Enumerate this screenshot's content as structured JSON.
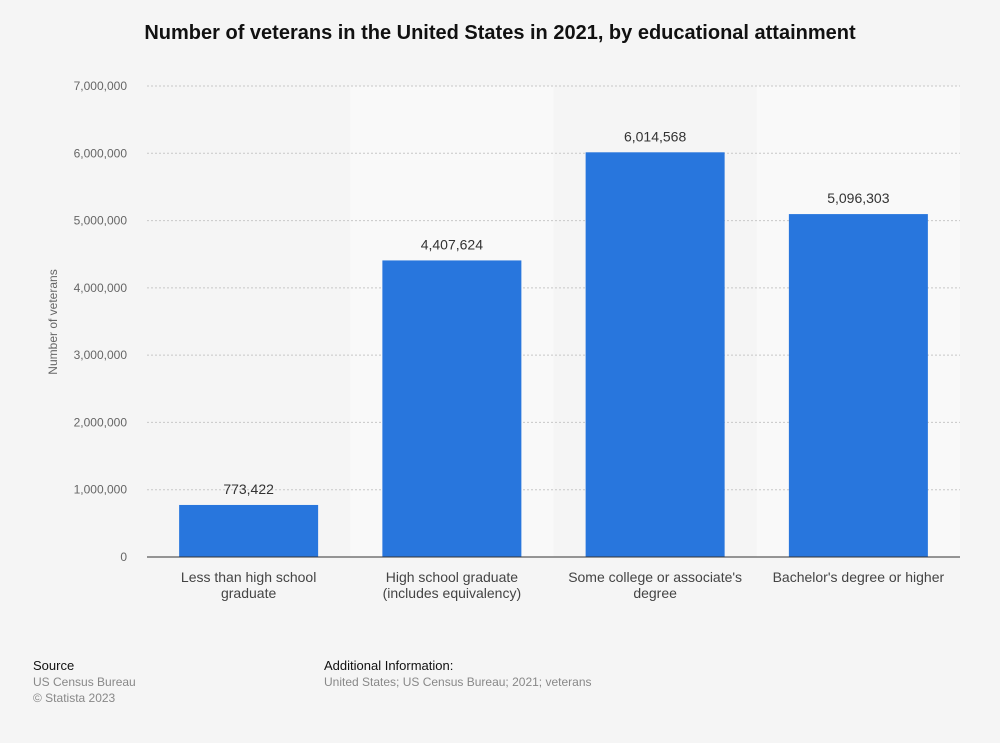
{
  "chart_data": {
    "type": "bar",
    "title": "Number of veterans in the United States in 2021, by educational attainment",
    "ylabel": "Number of veterans",
    "xlabel": "",
    "categories": [
      [
        "Less than high school",
        "graduate"
      ],
      [
        "High school graduate",
        "(includes equivalency)"
      ],
      [
        "Some college or associate's",
        "degree"
      ],
      [
        "Bachelor's degree or higher"
      ]
    ],
    "values": [
      773422,
      4407624,
      6014568,
      5096303
    ],
    "value_labels": [
      "773,422",
      "4,407,624",
      "6,014,568",
      "5,096,303"
    ],
    "ylim": [
      0,
      7000000
    ],
    "yticks": [
      0,
      1000000,
      2000000,
      3000000,
      4000000,
      5000000,
      6000000,
      7000000
    ],
    "ytick_labels": [
      "0",
      "1,000,000",
      "2,000,000",
      "3,000,000",
      "4,000,000",
      "5,000,000",
      "6,000,000",
      "7,000,000"
    ],
    "grid": true,
    "bar_color": "#2876dd",
    "band_color": "#f9f9f9"
  },
  "footer": {
    "source_heading": "Source",
    "source_lines": [
      "US Census Bureau",
      "© Statista 2023"
    ],
    "info_heading": "Additional Information:",
    "info_text": "United States; US Census Bureau; 2021; veterans"
  }
}
